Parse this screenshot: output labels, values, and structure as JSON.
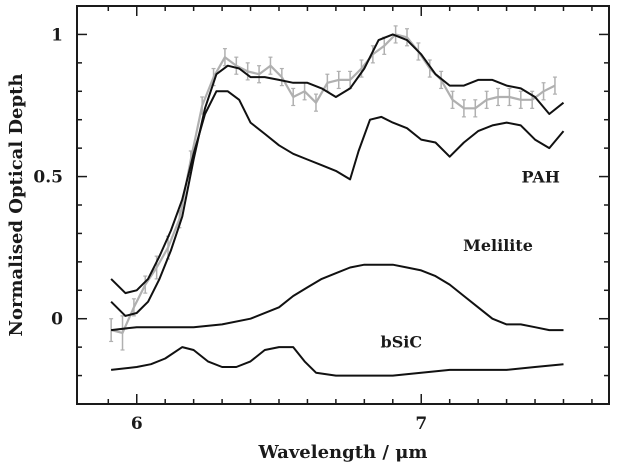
{
  "chart_data": {
    "type": "line",
    "xlabel": "Wavelength / μm",
    "ylabel": "Normalised Optical Depth",
    "xlim": [
      5.79,
      7.66
    ],
    "ylim": [
      -0.3,
      1.1
    ],
    "x_ticks": [
      6,
      7
    ],
    "x_tick_labels": [
      "6",
      "7"
    ],
    "y_ticks": [
      0,
      0.5,
      1
    ],
    "y_tick_labels": [
      "0",
      "0.5",
      "1"
    ],
    "grid": false,
    "legend": "none",
    "annotations": [
      {
        "text": "PAH",
        "x": 7.42,
        "y": 0.5
      },
      {
        "text": "Melilite",
        "x": 7.27,
        "y": 0.26
      },
      {
        "text": "bSiC",
        "x": 6.93,
        "y": -0.08
      }
    ],
    "series": [
      {
        "color": "#b0b0b0",
        "error_bars": true,
        "x": [
          5.91,
          5.95,
          5.99,
          6.03,
          6.07,
          6.11,
          6.15,
          6.19,
          6.23,
          6.27,
          6.31,
          6.35,
          6.39,
          6.43,
          6.47,
          6.51,
          6.55,
          6.59,
          6.63,
          6.67,
          6.71,
          6.75,
          6.79,
          6.83,
          6.87,
          6.91,
          6.95,
          6.99,
          7.03,
          7.07,
          7.11,
          7.15,
          7.19,
          7.23,
          7.27,
          7.31,
          7.35,
          7.39,
          7.43,
          7.47
        ],
        "y": [
          -0.04,
          -0.05,
          0.04,
          0.12,
          0.18,
          0.25,
          0.35,
          0.56,
          0.75,
          0.85,
          0.92,
          0.89,
          0.87,
          0.86,
          0.89,
          0.85,
          0.78,
          0.8,
          0.76,
          0.83,
          0.84,
          0.84,
          0.88,
          0.93,
          0.96,
          1.0,
          0.99,
          0.94,
          0.88,
          0.84,
          0.77,
          0.74,
          0.74,
          0.77,
          0.78,
          0.78,
          0.77,
          0.77,
          0.8,
          0.82
        ],
        "err": [
          0.04,
          0.06,
          0.03,
          0.03,
          0.04,
          0.04,
          0.03,
          0.03,
          0.03,
          0.03,
          0.03,
          0.03,
          0.03,
          0.03,
          0.03,
          0.03,
          0.03,
          0.03,
          0.03,
          0.03,
          0.03,
          0.03,
          0.03,
          0.03,
          0.03,
          0.03,
          0.03,
          0.03,
          0.03,
          0.03,
          0.03,
          0.03,
          0.03,
          0.03,
          0.03,
          0.03,
          0.03,
          0.03,
          0.03,
          0.03
        ]
      },
      {
        "color": "#111111",
        "x": [
          5.91,
          5.96,
          6.0,
          6.04,
          6.08,
          6.12,
          6.16,
          6.2,
          6.24,
          6.28,
          6.32,
          6.36,
          6.4,
          6.45,
          6.5,
          6.55,
          6.6,
          6.65,
          6.7,
          6.75,
          6.8,
          6.85,
          6.9,
          6.95,
          7.0,
          7.05,
          7.1,
          7.15,
          7.2,
          7.25,
          7.3,
          7.35,
          7.4,
          7.45,
          7.5
        ],
        "y": [
          0.06,
          0.01,
          0.02,
          0.06,
          0.14,
          0.24,
          0.36,
          0.56,
          0.74,
          0.86,
          0.89,
          0.88,
          0.85,
          0.85,
          0.84,
          0.83,
          0.83,
          0.81,
          0.78,
          0.81,
          0.88,
          0.98,
          1.0,
          0.98,
          0.93,
          0.86,
          0.82,
          0.82,
          0.84,
          0.84,
          0.82,
          0.81,
          0.78,
          0.72,
          0.76
        ]
      },
      {
        "color": "#111111",
        "x": [
          5.91,
          5.96,
          6.0,
          6.04,
          6.08,
          6.12,
          6.16,
          6.2,
          6.24,
          6.28,
          6.32,
          6.36,
          6.4,
          6.45,
          6.5,
          6.55,
          6.6,
          6.65,
          6.7,
          6.75,
          6.78,
          6.82,
          6.86,
          6.9,
          6.95,
          7.0,
          7.05,
          7.1,
          7.15,
          7.2,
          7.25,
          7.3,
          7.35,
          7.4,
          7.45,
          7.5
        ],
        "y": [
          0.14,
          0.09,
          0.1,
          0.14,
          0.22,
          0.31,
          0.42,
          0.58,
          0.72,
          0.8,
          0.8,
          0.77,
          0.69,
          0.65,
          0.61,
          0.58,
          0.56,
          0.54,
          0.52,
          0.49,
          0.59,
          0.7,
          0.71,
          0.69,
          0.67,
          0.63,
          0.62,
          0.57,
          0.62,
          0.66,
          0.68,
          0.69,
          0.68,
          0.63,
          0.6,
          0.66
        ]
      },
      {
        "color": "#111111",
        "x": [
          5.91,
          6.0,
          6.1,
          6.2,
          6.3,
          6.4,
          6.5,
          6.55,
          6.6,
          6.65,
          6.7,
          6.75,
          6.8,
          6.85,
          6.9,
          6.95,
          7.0,
          7.05,
          7.1,
          7.15,
          7.2,
          7.25,
          7.3,
          7.35,
          7.4,
          7.45,
          7.5
        ],
        "y": [
          -0.04,
          -0.03,
          -0.03,
          -0.03,
          -0.02,
          0.0,
          0.04,
          0.08,
          0.11,
          0.14,
          0.16,
          0.18,
          0.19,
          0.19,
          0.19,
          0.18,
          0.17,
          0.15,
          0.12,
          0.08,
          0.04,
          0.0,
          -0.02,
          -0.02,
          -0.03,
          -0.04,
          -0.04
        ]
      },
      {
        "color": "#111111",
        "x": [
          5.91,
          6.0,
          6.05,
          6.1,
          6.16,
          6.2,
          6.25,
          6.3,
          6.35,
          6.4,
          6.45,
          6.5,
          6.55,
          6.59,
          6.63,
          6.7,
          6.8,
          6.9,
          7.0,
          7.1,
          7.2,
          7.3,
          7.4,
          7.5
        ],
        "y": [
          -0.18,
          -0.17,
          -0.16,
          -0.14,
          -0.1,
          -0.11,
          -0.15,
          -0.17,
          -0.17,
          -0.15,
          -0.11,
          -0.1,
          -0.1,
          -0.15,
          -0.19,
          -0.2,
          -0.2,
          -0.2,
          -0.19,
          -0.18,
          -0.18,
          -0.18,
          -0.17,
          -0.16
        ]
      }
    ]
  }
}
